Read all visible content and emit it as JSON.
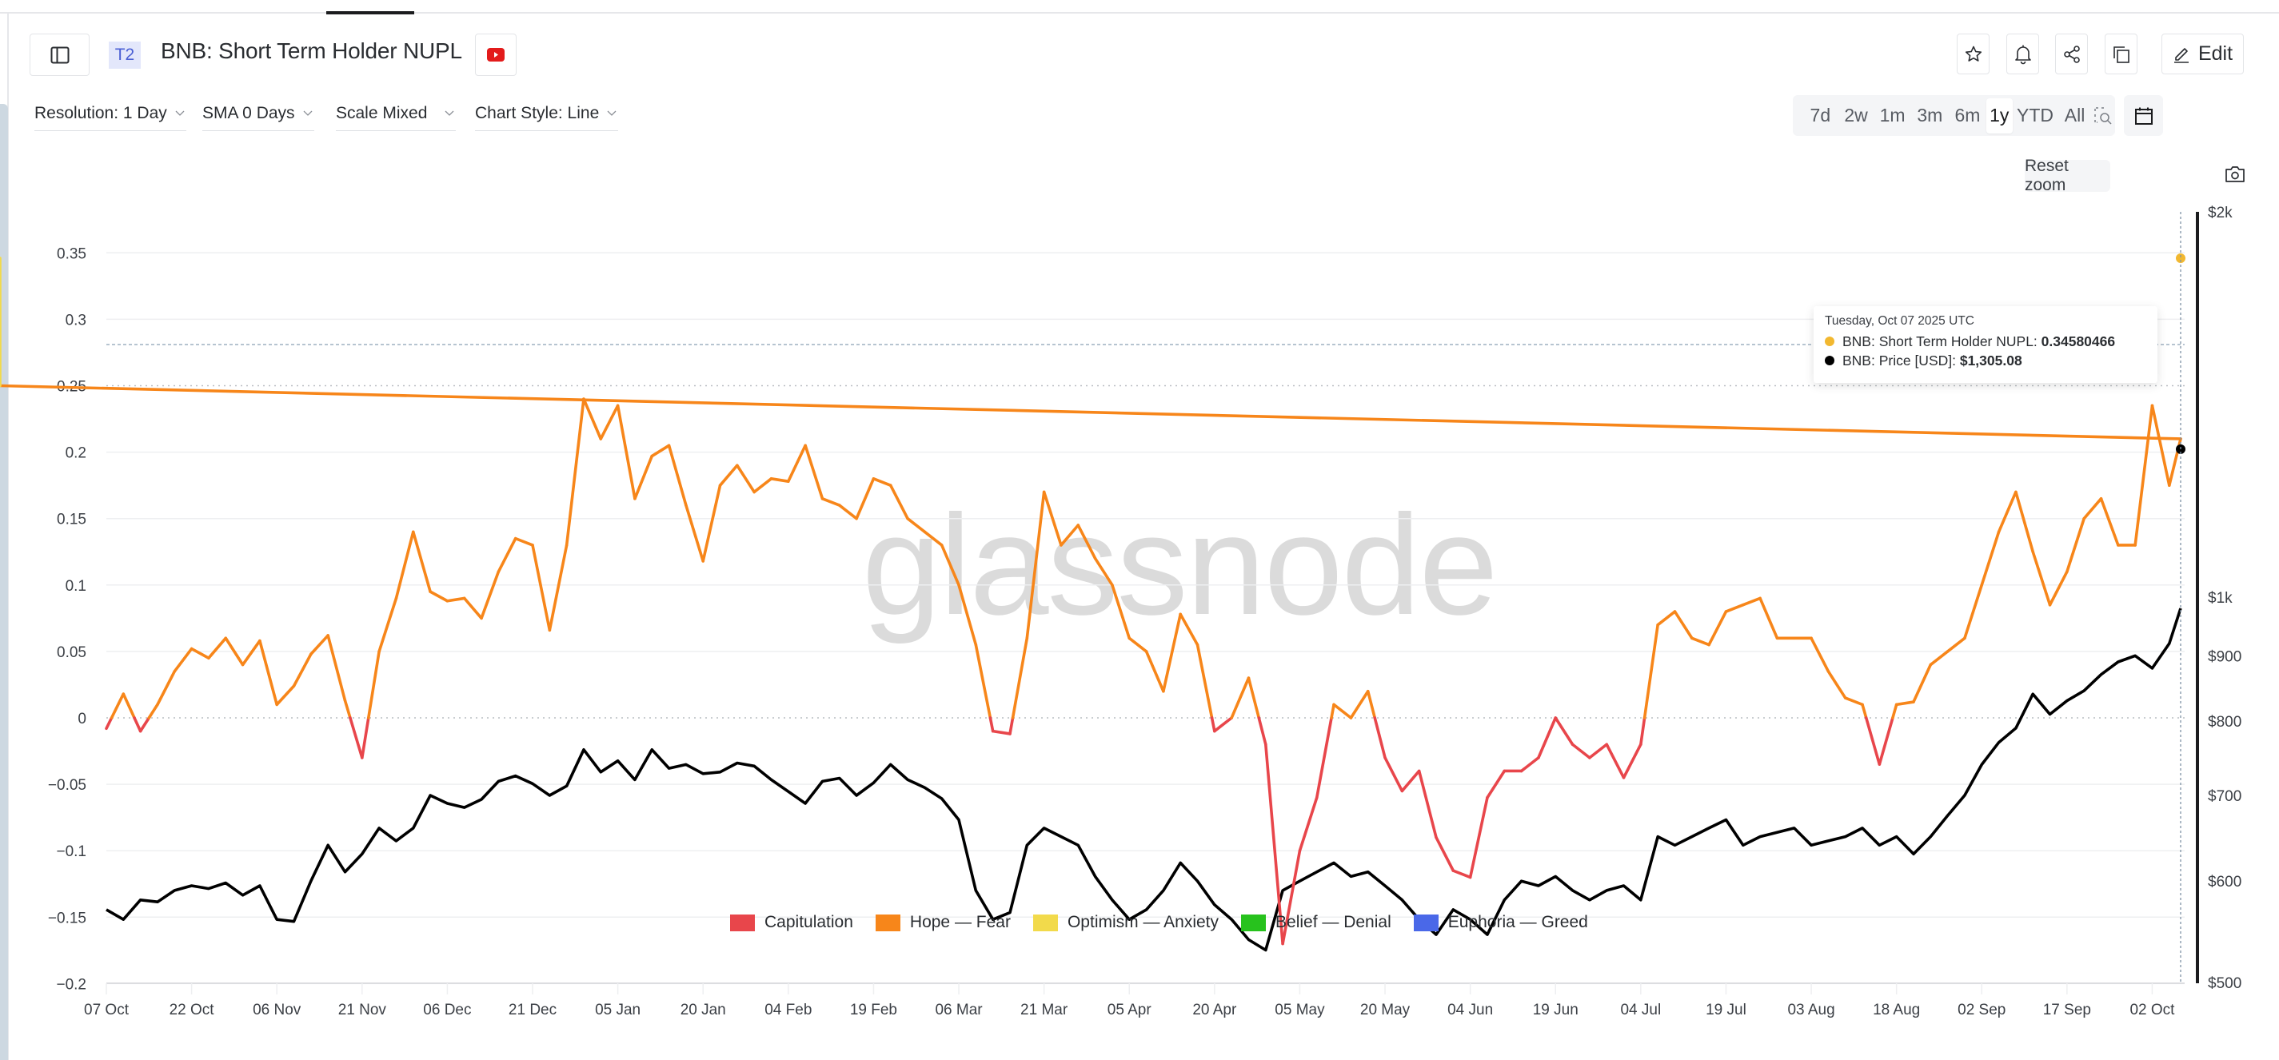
{
  "header": {
    "badge": "T2",
    "title": "BNB: Short Term Holder NUPL",
    "edit_label": "Edit"
  },
  "controls": {
    "resolution": "Resolution: 1 Day",
    "sma": "SMA 0 Days",
    "scale": "Scale Mixed",
    "chart_style": "Chart Style: Line"
  },
  "ranges": [
    {
      "label": "7d",
      "active": false
    },
    {
      "label": "2w",
      "active": false
    },
    {
      "label": "1m",
      "active": false
    },
    {
      "label": "3m",
      "active": false
    },
    {
      "label": "6m",
      "active": false
    },
    {
      "label": "1y",
      "active": true
    },
    {
      "label": "YTD",
      "active": false
    },
    {
      "label": "All",
      "active": false
    }
  ],
  "reset_zoom_label": "Reset zoom",
  "watermark": "glassnode",
  "tooltip": {
    "date": "Tuesday, Oct 07 2025 UTC",
    "rows": [
      {
        "label": "BNB: Short Term Holder NUPL: ",
        "value": "0.34580466",
        "color": "#f2b830"
      },
      {
        "label": "BNB: Price [USD]: ",
        "value": "$1,305.08",
        "color": "#000000"
      }
    ]
  },
  "legend": [
    {
      "label": "Capitulation",
      "color": "#e8464b"
    },
    {
      "label": "Hope — Fear",
      "color": "#f7861a"
    },
    {
      "label": "Optimism — Anxiety",
      "color": "#f2da4b"
    },
    {
      "label": "Belief — Denial",
      "color": "#27c21d"
    },
    {
      "label": "Euphoria — Greed",
      "color": "#4a68e8"
    }
  ],
  "colors": {
    "capitulation": "#e8464b",
    "hope_fear": "#f7861a",
    "optimism_anxiety": "#f2da4b",
    "price": "#000000",
    "accent_badge": "#4a5fd4",
    "youtube": "#e31b1b"
  },
  "chart_data": {
    "type": "line",
    "title": "BNB: Short Term Holder NUPL",
    "xlabel": "",
    "ylabel": "",
    "x_tick_labels": [
      "07 Oct",
      "22 Oct",
      "06 Nov",
      "21 Nov",
      "06 Dec",
      "21 Dec",
      "05 Jan",
      "20 Jan",
      "04 Feb",
      "19 Feb",
      "06 Mar",
      "21 Mar",
      "05 Apr",
      "20 Apr",
      "05 May",
      "20 May",
      "04 Jun",
      "19 Jun",
      "04 Jul",
      "19 Jul",
      "03 Aug",
      "18 Aug",
      "02 Sep",
      "17 Sep",
      "02 Oct"
    ],
    "y_left_ticks": [
      "0.35",
      "0.3",
      "0.25",
      "0.2",
      "0.15",
      "0.1",
      "0.05",
      "0",
      "-0.05",
      "-0.1",
      "-0.15",
      "-0.2"
    ],
    "y_left_range": [
      -0.2,
      0.35
    ],
    "y_right_ticks": [
      "$2k",
      "$1k",
      "$900",
      "$800",
      "$700",
      "$600",
      "$500"
    ],
    "y_right_scale": "log",
    "y_right_range": [
      500,
      2000
    ],
    "grid": true,
    "legend_position": "bottom-center",
    "zones": [
      {
        "name": "Capitulation",
        "range": "< 0"
      },
      {
        "name": "Hope — Fear",
        "range": "0 – 0.25"
      },
      {
        "name": "Optimism — Anxiety",
        "range": "0.25 – 0.5"
      },
      {
        "name": "Belief — Denial",
        "range": "0.5 – 0.75"
      },
      {
        "name": "Euphoria — Greed",
        "range": "> 0.75"
      }
    ],
    "x_day_offsets": [
      0,
      3,
      6,
      9,
      12,
      15,
      18,
      21,
      24,
      27,
      30,
      33,
      36,
      39,
      42,
      45,
      48,
      51,
      54,
      57,
      60,
      63,
      66,
      69,
      72,
      75,
      78,
      81,
      84,
      87,
      90,
      93,
      96,
      99,
      102,
      105,
      108,
      111,
      114,
      117,
      120,
      123,
      126,
      129,
      132,
      135,
      138,
      141,
      144,
      147,
      150,
      153,
      156,
      159,
      162,
      165,
      168,
      171,
      174,
      177,
      180,
      183,
      186,
      189,
      192,
      195,
      198,
      201,
      204,
      207,
      210,
      213,
      216,
      219,
      222,
      225,
      228,
      231,
      234,
      237,
      240,
      243,
      246,
      249,
      252,
      255,
      258,
      261,
      264,
      267,
      270,
      273,
      276,
      279,
      282,
      285,
      288,
      291,
      294,
      297,
      300,
      303,
      306,
      309,
      312,
      315,
      318,
      321,
      324,
      327,
      330,
      333,
      336,
      339,
      342,
      345,
      348,
      351,
      354,
      357,
      360,
      363,
      365
    ],
    "series": [
      {
        "name": "BNB: Short Term Holder NUPL",
        "axis": "left",
        "values": [
          -0.008,
          0.018,
          -0.01,
          0.01,
          0.035,
          0.052,
          0.045,
          0.06,
          0.04,
          0.058,
          0.01,
          0.024,
          0.048,
          0.062,
          0.013,
          -0.03,
          0.05,
          0.09,
          0.14,
          0.095,
          0.088,
          0.09,
          0.075,
          0.11,
          0.135,
          0.13,
          0.066,
          0.13,
          0.24,
          0.21,
          0.235,
          0.165,
          0.197,
          0.205,
          0.16,
          0.118,
          0.175,
          0.19,
          0.17,
          0.18,
          0.178,
          0.205,
          0.165,
          0.16,
          0.15,
          0.18,
          0.175,
          0.15,
          0.14,
          0.13,
          0.1,
          0.055,
          -0.01,
          -0.012,
          0.06,
          0.17,
          0.13,
          0.145,
          0.12,
          0.1,
          0.06,
          0.05,
          0.02,
          0.078,
          0.055,
          -0.01,
          0.0,
          0.03,
          -0.02,
          -0.17,
          -0.1,
          -0.06,
          0.01,
          0.0,
          0.02,
          -0.03,
          -0.055,
          -0.04,
          -0.09,
          -0.115,
          -0.12,
          -0.06,
          -0.04,
          -0.04,
          -0.03,
          0.0,
          -0.02,
          -0.03,
          -0.02,
          -0.045,
          -0.02,
          0.07,
          0.08,
          0.06,
          0.055,
          0.08,
          0.085,
          0.09,
          0.06,
          0.06,
          0.06,
          0.035,
          0.015,
          0.01,
          -0.035,
          0.01,
          0.012,
          0.04,
          0.05,
          0.06,
          0.1,
          0.14,
          0.17,
          0.125,
          0.085,
          0.11,
          0.15,
          0.165,
          0.13,
          0.13,
          0.235,
          0.175,
          0.21,
          0.346
        ],
        "color_zones": "capitulation<0, hope_fear 0–0.25, optimism_anxiety 0.25–0.5"
      },
      {
        "name": "BNB: Price [USD]",
        "axis": "right",
        "values": [
          570,
          560,
          580,
          578,
          590,
          595,
          592,
          598,
          585,
          595,
          560,
          558,
          600,
          640,
          610,
          630,
          660,
          645,
          660,
          700,
          690,
          685,
          695,
          718,
          725,
          715,
          700,
          712,
          760,
          730,
          745,
          720,
          760,
          735,
          740,
          728,
          730,
          742,
          738,
          720,
          705,
          690,
          718,
          722,
          700,
          716,
          740,
          720,
          710,
          696,
          670,
          590,
          560,
          567,
          640,
          660,
          650,
          640,
          605,
          580,
          560,
          570,
          590,
          620,
          600,
          575,
          560,
          540,
          530,
          590,
          600,
          610,
          620,
          605,
          610,
          595,
          580,
          560,
          545,
          570,
          560,
          545,
          580,
          600,
          595,
          605,
          590,
          580,
          590,
          595,
          580,
          650,
          640,
          650,
          660,
          670,
          640,
          650,
          655,
          660,
          640,
          645,
          650,
          660,
          640,
          650,
          630,
          650,
          675,
          700,
          740,
          770,
          790,
          840,
          810,
          830,
          845,
          870,
          890,
          900,
          880,
          920,
          980,
          1005,
          1100,
          1305
        ]
      }
    ],
    "tooltip_point": {
      "date": "Tuesday, Oct 07 2025 UTC",
      "nupl": 0.34580466,
      "price_usd": 1305.08
    }
  }
}
